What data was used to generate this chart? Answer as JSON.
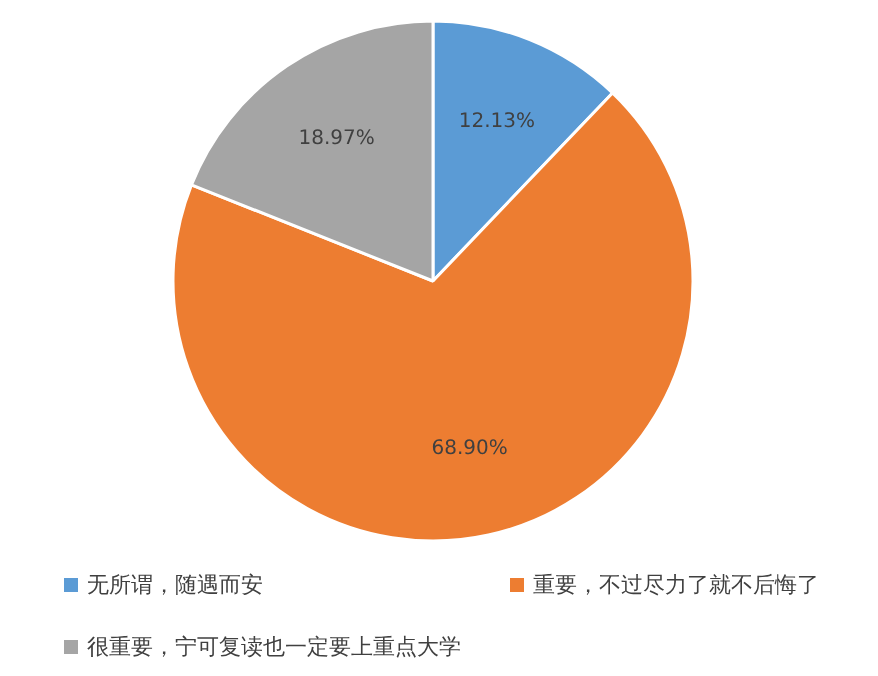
{
  "chart_data": {
    "type": "pie",
    "categories": [
      "无所谓，随遇而安",
      "重要，不过尽力了就不后悔了",
      "很重要，宁可复读也一定要上重点大学"
    ],
    "values": [
      12.13,
      68.9,
      18.97
    ],
    "colors": [
      "#5b9bd5",
      "#ed7d31",
      "#a5a5a5"
    ],
    "value_labels": [
      "12.13%",
      "68.90%",
      "18.97%"
    ],
    "legend": "bottom"
  }
}
